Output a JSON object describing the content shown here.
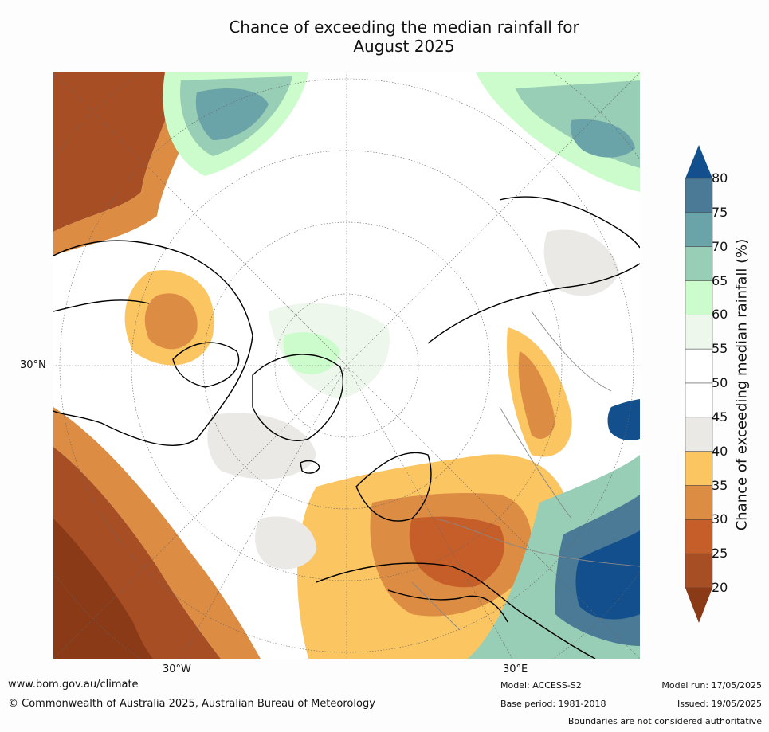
{
  "title_line1": "Chance of exceeding the median rainfall for",
  "title_line2": "August 2025",
  "axis_labels": {
    "lat_30n": "30°N",
    "lon_30w": "30°W",
    "lon_30e": "30°E"
  },
  "colorbar": {
    "label": "Chance of exceeding median rainfall (%)",
    "ticks": [
      "20",
      "25",
      "30",
      "35",
      "40",
      "45",
      "50",
      "55",
      "60",
      "65",
      "70",
      "75",
      "80"
    ],
    "colors": {
      "below_20": "#8a3a17",
      "20_25": "#a84e25",
      "25_30": "#c65e2a",
      "30_35": "#dc8c43",
      "35_40": "#fbc561",
      "40_45": "#ebe9e5",
      "45_50": "#ffffff",
      "50_55": "#ffffff",
      "55_60": "#edf7ec",
      "60_65": "#ccfccc",
      "65_70": "#98cdb6",
      "70_75": "#6aa3a8",
      "75_80": "#4a7a96",
      "above_80": "#124f8c"
    }
  },
  "footer": {
    "website": "www.bom.gov.au/climate",
    "copyright": "© Commonwealth of Australia 2025, Australian Bureau of Meteorology",
    "model": "Model: ACCESS-S2",
    "base_period": "Base period: 1981-2018",
    "model_run": "Model run: 17/05/2025",
    "issued": "Issued: 19/05/2025",
    "boundaries_note": "Boundaries are not considered authoritative"
  }
}
